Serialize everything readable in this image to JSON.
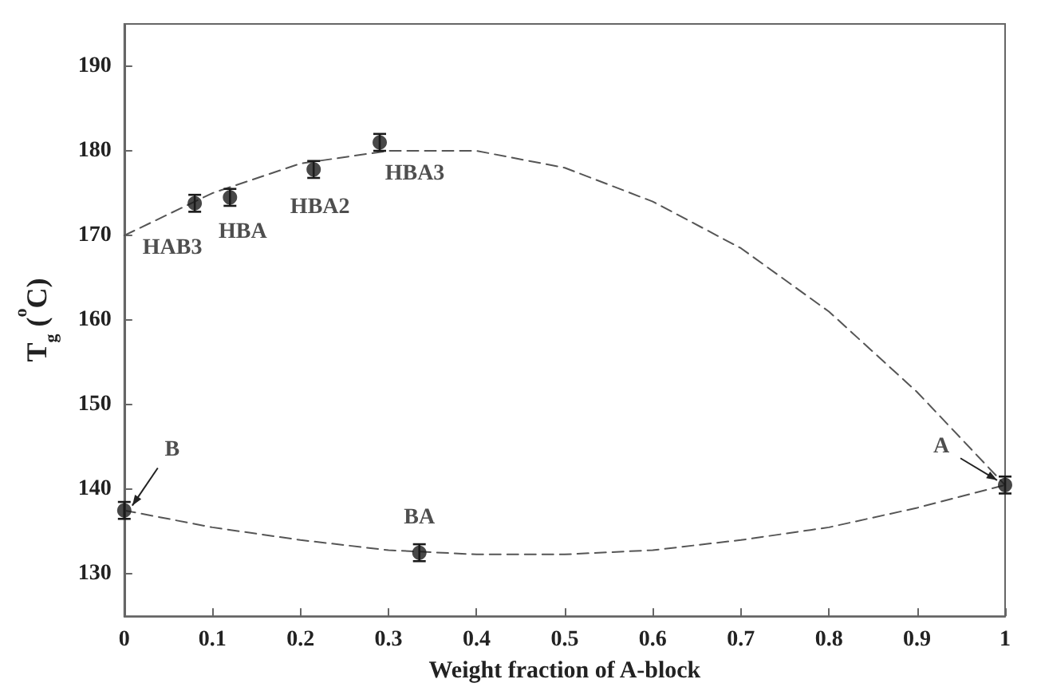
{
  "chart_data": {
    "type": "scatter",
    "xlabel": "Weight fraction of A-block",
    "ylabel": "T$_{g}$ ($^{o}$C)",
    "xlim": [
      0,
      1
    ],
    "ylim": [
      125,
      195
    ],
    "xticks": [
      0,
      0.1,
      0.2,
      0.3,
      0.4,
      0.5,
      0.6,
      0.7,
      0.8,
      0.9,
      1
    ],
    "yticks": [
      130,
      140,
      150,
      160,
      170,
      180,
      190
    ],
    "grid": false,
    "series": [
      {
        "color": "#1a1a1a",
        "marker": "circle",
        "x": [
          0,
          0.08,
          0.12,
          0.215,
          0.29,
          0.335,
          1
        ],
        "values": [
          137.5,
          173.8,
          174.5,
          177.8,
          181,
          132.5,
          140.5
        ],
        "errors": [
          1,
          1,
          1,
          1,
          1,
          1,
          1
        ]
      },
      {
        "type": "line",
        "color": "#555555",
        "marker": "none",
        "line_style": "dashed",
        "x": [
          0,
          0.1,
          0.2,
          0.3,
          0.4,
          0.5,
          0.6,
          0.7,
          0.8,
          0.9,
          1
        ],
        "values": [
          170,
          175,
          178.5,
          180,
          180,
          178,
          174,
          168.5,
          161,
          151.5,
          140.5
        ]
      },
      {
        "type": "line",
        "color": "#555555",
        "marker": "none",
        "line_style": "dashed",
        "x": [
          0,
          0.1,
          0.2,
          0.3,
          0.4,
          0.5,
          0.6,
          0.7,
          0.8,
          0.9,
          1
        ],
        "values": [
          137.5,
          135.5,
          134,
          132.8,
          132.3,
          132.3,
          132.8,
          134,
          135.5,
          137.8,
          140.5
        ]
      }
    ],
    "annotations": [
      {
        "text": "HAB3",
        "x": 0.08,
        "y": 173.8
      },
      {
        "text": "HBA",
        "x": 0.12,
        "y": 174.5
      },
      {
        "text": "HBA2",
        "x": 0.215,
        "y": 177.8
      },
      {
        "text": "HBA3",
        "x": 0.29,
        "y": 181
      },
      {
        "text": "BA",
        "x": 0.335,
        "y": 132.5
      },
      {
        "text": "B",
        "x": 0,
        "y": 137.5
      },
      {
        "text": "A",
        "x": 1,
        "y": 140.5
      }
    ]
  }
}
